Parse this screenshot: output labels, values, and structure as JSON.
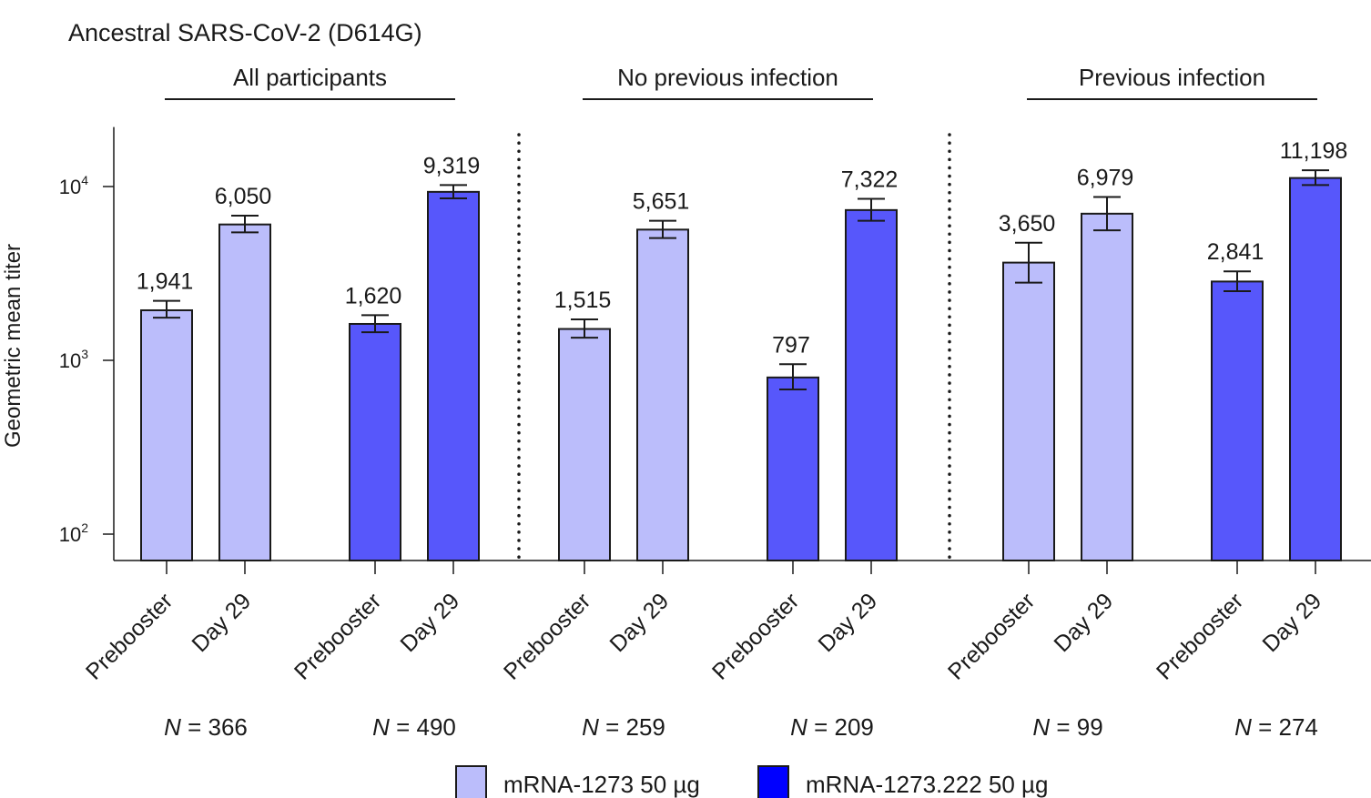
{
  "chart_data": {
    "type": "bar",
    "title": "Ancestral SARS-CoV-2 (D614G)",
    "ylabel": "Geometric mean titer",
    "xlabel": "",
    "yscale": "log",
    "ylim": [
      60,
      22000
    ],
    "yticks": [
      {
        "value": 100,
        "base": "10",
        "exp": "2"
      },
      {
        "value": 1000,
        "base": "10",
        "exp": "3"
      },
      {
        "value": 10000,
        "base": "10",
        "exp": "4"
      }
    ],
    "legend": [
      {
        "name": "mRNA-1273 50 µg",
        "color": "#bbbdfb"
      },
      {
        "name": "mRNA-1273.222 50 µg",
        "color": "#0000ff"
      }
    ],
    "groups": [
      {
        "title": "All participants",
        "subgroups": [
          {
            "n_label": "N = 366",
            "series": "mRNA-1273 50 µg",
            "bars": [
              {
                "category": "Prebooster",
                "value": 1941,
                "label": "1,941",
                "ci": [
                  1760,
                  2200
                ]
              },
              {
                "category": "Day 29",
                "value": 6050,
                "label": "6,050",
                "ci": [
                  5450,
                  6800
                ]
              }
            ]
          },
          {
            "n_label": "N = 490",
            "series": "mRNA-1273.222 50 µg",
            "bars": [
              {
                "category": "Prebooster",
                "value": 1620,
                "label": "1,620",
                "ci": [
                  1450,
                  1820
                ]
              },
              {
                "category": "Day 29",
                "value": 9319,
                "label": "9,319",
                "ci": [
                  8550,
                  10200
                ]
              }
            ]
          }
        ]
      },
      {
        "title": "No previous infection",
        "subgroups": [
          {
            "n_label": "N = 259",
            "series": "mRNA-1273 50 µg",
            "bars": [
              {
                "category": "Prebooster",
                "value": 1515,
                "label": "1,515",
                "ci": [
                  1350,
                  1720
                ]
              },
              {
                "category": "Day 29",
                "value": 5651,
                "label": "5,651",
                "ci": [
                  5050,
                  6350
                ]
              }
            ]
          },
          {
            "n_label": "N = 209",
            "series": "mRNA-1273.222 50 µg",
            "bars": [
              {
                "category": "Prebooster",
                "value": 797,
                "label": "797",
                "ci": [
                  680,
                  950
                ]
              },
              {
                "category": "Day 29",
                "value": 7322,
                "label": "7,322",
                "ci": [
                  6350,
                  8500
                ]
              }
            ]
          }
        ]
      },
      {
        "title": "Previous infection",
        "subgroups": [
          {
            "n_label": "N = 99",
            "series": "mRNA-1273 50 µg",
            "bars": [
              {
                "category": "Prebooster",
                "value": 3650,
                "label": "3,650",
                "ci": [
                  2800,
                  4750
                ]
              },
              {
                "category": "Day 29",
                "value": 6979,
                "label": "6,979",
                "ci": [
                  5600,
                  8700
                ]
              }
            ]
          },
          {
            "n_label": "N = 274",
            "series": "mRNA-1273.222 50 µg",
            "bars": [
              {
                "category": "Prebooster",
                "value": 2841,
                "label": "2,841",
                "ci": [
                  2500,
                  3250
                ]
              },
              {
                "category": "Day 29",
                "value": 11198,
                "label": "11,198",
                "ci": [
                  10200,
                  12400
                ]
              }
            ]
          }
        ]
      }
    ]
  }
}
